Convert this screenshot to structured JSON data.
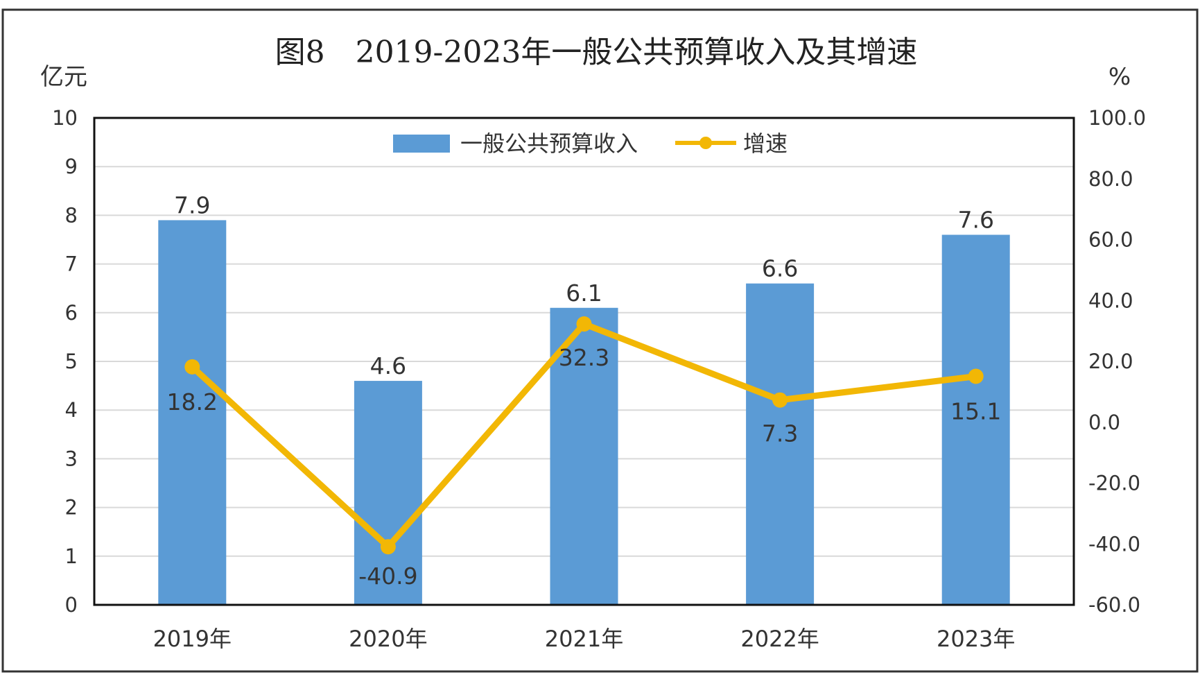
{
  "chart_data": {
    "type": "bar",
    "title": "图8　2019-2023年一般公共预算收入及其增速",
    "categories": [
      "2019年",
      "2020年",
      "2021年",
      "2022年",
      "2023年"
    ],
    "series": [
      {
        "name": "一般公共预算收入",
        "type": "bar",
        "axis": "left",
        "color": "#5B9BD5",
        "values": [
          7.9,
          4.6,
          6.1,
          6.6,
          7.6
        ]
      },
      {
        "name": "增速",
        "type": "line",
        "axis": "right",
        "color": "#F2B705",
        "values": [
          18.2,
          -40.9,
          32.3,
          7.3,
          15.1
        ]
      }
    ],
    "y_left": {
      "unit": "亿元",
      "range": [
        0,
        10
      ],
      "step": 1,
      "tick_labels": [
        "0",
        "1",
        "2",
        "3",
        "4",
        "5",
        "6",
        "7",
        "8",
        "9",
        "10"
      ]
    },
    "y_right": {
      "unit": "%",
      "range": [
        -60,
        100
      ],
      "step": 20,
      "tick_labels": [
        "-60.0",
        "-40.0",
        "-20.0",
        "0.0",
        "20.0",
        "40.0",
        "60.0",
        "80.0",
        "100.0"
      ]
    },
    "bar_labels": [
      "7.9",
      "4.6",
      "6.1",
      "6.6",
      "7.6"
    ],
    "line_labels": [
      "18.2",
      "-40.9",
      "32.3",
      "7.3",
      "15.1"
    ],
    "grid": true,
    "legend_position": "top"
  }
}
